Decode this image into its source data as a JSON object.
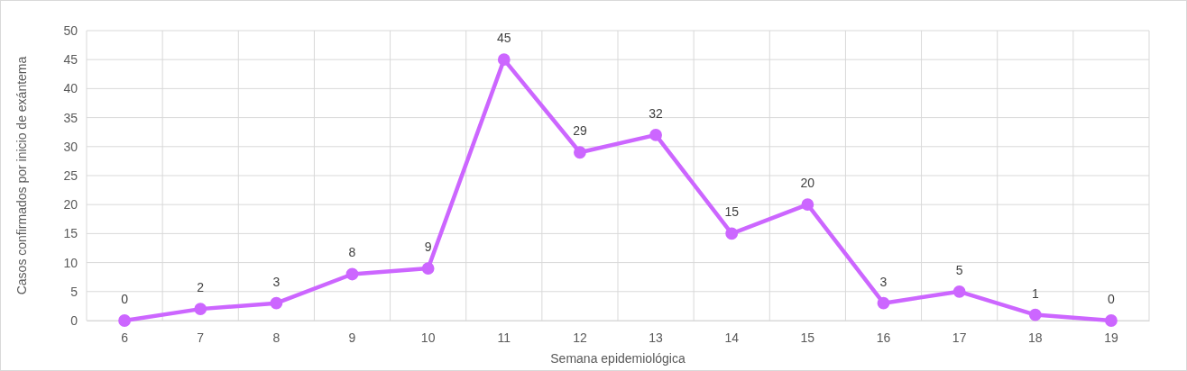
{
  "chart_data": {
    "type": "line",
    "xlabel": "Semana epidemiológica",
    "ylabel": "Casos confirmados por inicio de exántema",
    "categories": [
      "6",
      "7",
      "8",
      "9",
      "10",
      "11",
      "12",
      "13",
      "14",
      "15",
      "16",
      "17",
      "18",
      "19"
    ],
    "series": [
      {
        "color": "#cc66ff",
        "values": [
          0,
          2,
          3,
          8,
          9,
          45,
          29,
          32,
          15,
          20,
          3,
          5,
          1,
          0
        ]
      }
    ],
    "ylim": [
      0,
      50
    ],
    "yticks": [
      0,
      5,
      10,
      15,
      20,
      25,
      30,
      35,
      40,
      45,
      50
    ],
    "grid": true,
    "data_labels": true,
    "marker": "circle"
  }
}
